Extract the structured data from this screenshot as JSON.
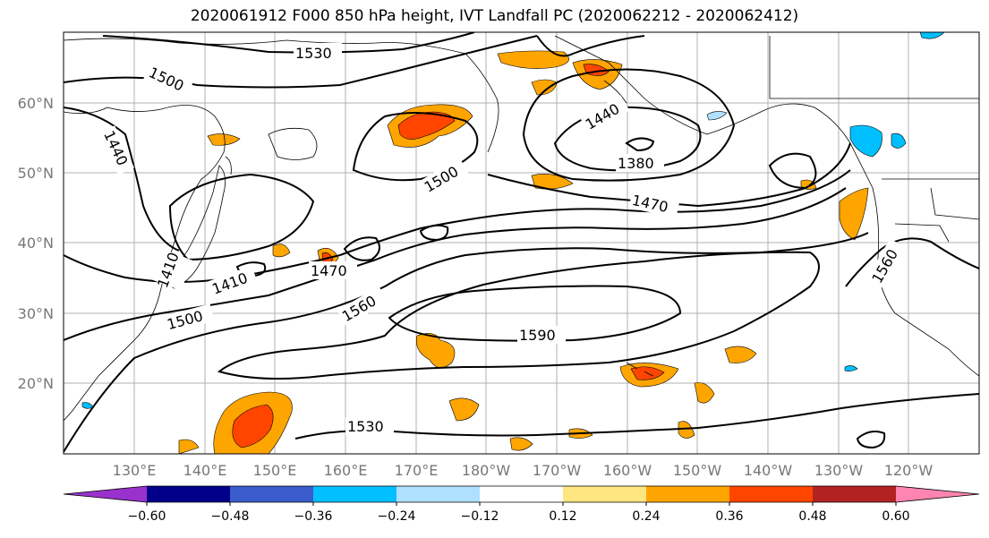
{
  "title": "2020061912 F000 850 hPa height, IVT Landfall PC (2020062212 - 2020062412)",
  "lat_labels": [
    "60°N",
    "50°N",
    "40°N",
    "30°N",
    "20°N"
  ],
  "lon_labels": [
    "130°E",
    "140°E",
    "150°E",
    "160°E",
    "170°E",
    "180°W",
    "170°W",
    "160°W",
    "150°W",
    "140°W",
    "130°W",
    "120°W"
  ],
  "contour_labels": [
    "1530",
    "1500",
    "1440",
    "1500",
    "1410",
    "1380",
    "1470",
    "1440",
    "1470",
    "1410",
    "1500",
    "1560",
    "1590",
    "1530",
    "1560"
  ],
  "colorbar": {
    "ticks": [
      "−0.60",
      "−0.48",
      "−0.36",
      "−0.24",
      "−0.12",
      "0.12",
      "0.24",
      "0.36",
      "0.48",
      "0.60"
    ],
    "colors": [
      "#9932cc",
      "#00008b",
      "#3a5ccc",
      "#00bfff",
      "#b0e0ff",
      "#ffffff",
      "#ffe680",
      "#ffa500",
      "#ff4500",
      "#b22222",
      "#ff85b0"
    ]
  }
}
